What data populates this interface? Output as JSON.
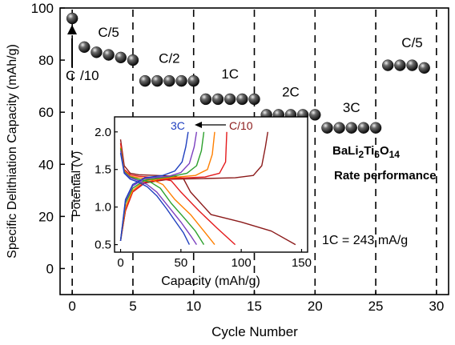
{
  "chart_data": [
    {
      "type": "scatter",
      "xlabel": "Cycle Number",
      "ylabel": "Specific Delithiation Capacity (mAh/g)",
      "xlim": [
        -1,
        31
      ],
      "ylim": [
        -10,
        100
      ],
      "xticks": [
        0,
        5,
        10,
        15,
        20,
        25,
        30
      ],
      "yticks": [
        0,
        20,
        40,
        60,
        80,
        100
      ],
      "grid": false,
      "rate_boundaries": [
        0,
        5,
        10,
        15,
        20,
        25,
        30
      ],
      "x": [
        0,
        1,
        2,
        3,
        4,
        5,
        6,
        7,
        8,
        9,
        10,
        11,
        12,
        13,
        14,
        15,
        16,
        17,
        18,
        19,
        20,
        21,
        22,
        23,
        24,
        25,
        26,
        27,
        28,
        29
      ],
      "y": [
        96,
        85,
        83,
        82,
        81,
        80,
        72,
        72,
        72,
        72,
        72,
        65,
        65,
        65,
        65,
        65,
        59,
        59,
        59,
        59,
        59,
        54,
        54,
        54,
        54,
        54,
        78,
        78,
        78,
        77
      ],
      "rate_labels": [
        {
          "text": "C/5",
          "x": 3,
          "y": 89
        },
        {
          "text": "C/2",
          "x": 8,
          "y": 79
        },
        {
          "text": "1C",
          "x": 13,
          "y": 73
        },
        {
          "text": "2C",
          "x": 18,
          "y": 66
        },
        {
          "text": "3C",
          "x": 23,
          "y": 60
        },
        {
          "text": "C/5",
          "x": 28,
          "y": 85
        }
      ],
      "annotation_first_cycle": {
        "text_top": "C",
        "text_bottom": "/10"
      },
      "material": {
        "base": "BaLi",
        "s1": "2",
        "mid": "Ti",
        "s2": "6",
        "o": "O",
        "s3": "14"
      },
      "caption_rate": "Rate performance",
      "caption_current": "1C = 243 mA/g"
    },
    {
      "type": "line",
      "xlabel": "Capacity (mAh/g)",
      "ylabel": "Potential (V)",
      "xlim": [
        -5,
        155
      ],
      "ylim": [
        0.4,
        2.2
      ],
      "xticks": [
        0,
        50,
        100,
        150
      ],
      "yticks": [
        0.5,
        1.0,
        1.5,
        2.0
      ],
      "legend_arrow": {
        "from": "C/10",
        "to": "3C"
      },
      "series_colors": [
        "#8b1a1a",
        "#e41a1c",
        "#ff7f00",
        "#2ca02c",
        "#7b3fbf",
        "#1f3fbf"
      ],
      "curves": [
        {
          "discharge": [
            [
              0,
              1.9
            ],
            [
              3,
              1.55
            ],
            [
              8,
              1.45
            ],
            [
              15,
              1.43
            ],
            [
              30,
              1.42
            ],
            [
              45,
              1.41
            ],
            [
              52,
              1.38
            ],
            [
              58,
              1.2
            ],
            [
              75,
              0.9
            ],
            [
              100,
              0.8
            ],
            [
              125,
              0.68
            ],
            [
              145,
              0.5
            ]
          ],
          "charge": [
            [
              0,
              0.55
            ],
            [
              4,
              0.95
            ],
            [
              10,
              1.2
            ],
            [
              20,
              1.32
            ],
            [
              40,
              1.37
            ],
            [
              70,
              1.38
            ],
            [
              95,
              1.39
            ],
            [
              110,
              1.42
            ],
            [
              117,
              1.55
            ],
            [
              120,
              1.8
            ],
            [
              122,
              2.0
            ]
          ]
        },
        {
          "discharge": [
            [
              0,
              1.85
            ],
            [
              3,
              1.5
            ],
            [
              8,
              1.43
            ],
            [
              15,
              1.41
            ],
            [
              30,
              1.39
            ],
            [
              42,
              1.35
            ],
            [
              50,
              1.2
            ],
            [
              65,
              0.95
            ],
            [
              80,
              0.72
            ],
            [
              95,
              0.5
            ]
          ],
          "charge": [
            [
              0,
              0.55
            ],
            [
              4,
              0.95
            ],
            [
              10,
              1.2
            ],
            [
              20,
              1.33
            ],
            [
              40,
              1.38
            ],
            [
              70,
              1.4
            ],
            [
              82,
              1.45
            ],
            [
              87,
              1.6
            ],
            [
              88,
              2.0
            ]
          ]
        },
        {
          "discharge": [
            [
              0,
              1.8
            ],
            [
              3,
              1.48
            ],
            [
              8,
              1.41
            ],
            [
              15,
              1.39
            ],
            [
              25,
              1.37
            ],
            [
              35,
              1.3
            ],
            [
              45,
              1.1
            ],
            [
              58,
              0.9
            ],
            [
              68,
              0.7
            ],
            [
              78,
              0.5
            ]
          ],
          "charge": [
            [
              0,
              0.55
            ],
            [
              4,
              1.0
            ],
            [
              10,
              1.22
            ],
            [
              20,
              1.35
            ],
            [
              40,
              1.39
            ],
            [
              62,
              1.42
            ],
            [
              72,
              1.5
            ],
            [
              76,
              1.7
            ],
            [
              78,
              2.0
            ]
          ]
        },
        {
          "discharge": [
            [
              0,
              1.78
            ],
            [
              3,
              1.47
            ],
            [
              8,
              1.4
            ],
            [
              15,
              1.37
            ],
            [
              25,
              1.33
            ],
            [
              33,
              1.25
            ],
            [
              42,
              1.05
            ],
            [
              53,
              0.85
            ],
            [
              62,
              0.68
            ],
            [
              69,
              0.5
            ]
          ],
          "charge": [
            [
              0,
              0.55
            ],
            [
              4,
              1.05
            ],
            [
              10,
              1.25
            ],
            [
              20,
              1.36
            ],
            [
              40,
              1.4
            ],
            [
              55,
              1.45
            ],
            [
              63,
              1.55
            ],
            [
              67,
              1.75
            ],
            [
              69,
              2.0
            ]
          ]
        },
        {
          "discharge": [
            [
              0,
              1.75
            ],
            [
              3,
              1.46
            ],
            [
              8,
              1.39
            ],
            [
              15,
              1.35
            ],
            [
              22,
              1.3
            ],
            [
              30,
              1.2
            ],
            [
              40,
              1.0
            ],
            [
              50,
              0.8
            ],
            [
              58,
              0.62
            ],
            [
              63,
              0.5
            ]
          ],
          "charge": [
            [
              0,
              0.55
            ],
            [
              4,
              1.08
            ],
            [
              10,
              1.28
            ],
            [
              20,
              1.38
            ],
            [
              40,
              1.41
            ],
            [
              50,
              1.46
            ],
            [
              57,
              1.58
            ],
            [
              61,
              1.8
            ],
            [
              63,
              2.0
            ]
          ]
        },
        {
          "discharge": [
            [
              0,
              1.72
            ],
            [
              3,
              1.45
            ],
            [
              8,
              1.37
            ],
            [
              15,
              1.33
            ],
            [
              22,
              1.27
            ],
            [
              30,
              1.15
            ],
            [
              38,
              0.98
            ],
            [
              45,
              0.82
            ],
            [
              52,
              0.66
            ],
            [
              57,
              0.5
            ]
          ],
          "charge": [
            [
              0,
              0.55
            ],
            [
              4,
              1.1
            ],
            [
              10,
              1.3
            ],
            [
              20,
              1.39
            ],
            [
              35,
              1.42
            ],
            [
              45,
              1.48
            ],
            [
              51,
              1.6
            ],
            [
              54,
              1.8
            ],
            [
              56,
              2.0
            ]
          ]
        }
      ]
    }
  ]
}
